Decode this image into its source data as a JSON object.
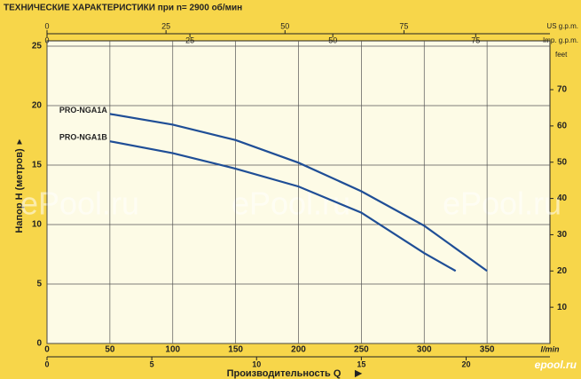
{
  "chart_data": {
    "type": "line",
    "title": "ТЕХНИЧЕСКИЕ ХАРАКТЕРИСТИКИ при n= 2900 об/мин",
    "y_label": "Напор H (метров)",
    "x_label": "Производительность Q",
    "x_unit": "l/min",
    "xlim": [
      0,
      400
    ],
    "xticks": [
      0,
      50,
      100,
      150,
      200,
      250,
      300,
      350
    ],
    "ylim": [
      0,
      25
    ],
    "yticks": [
      0,
      5,
      10,
      15,
      20,
      25
    ],
    "y2_unit": "feet",
    "y2lim": [
      0,
      82
    ],
    "y2ticks": [
      10,
      20,
      30,
      40,
      50,
      60,
      70
    ],
    "top_axes": [
      {
        "label": "US g.p.m.",
        "lim": [
          0,
          105.67
        ],
        "ticks": [
          0,
          25,
          50,
          75
        ]
      },
      {
        "label": "Imp. g.p.m.",
        "lim": [
          0,
          87.99
        ],
        "ticks": [
          0,
          25,
          50,
          75
        ]
      }
    ],
    "bottom_axis": {
      "lim": [
        0,
        24
      ],
      "ticks": [
        0,
        5,
        10,
        15,
        20
      ]
    },
    "grid": true,
    "series": [
      {
        "name": "PRO-NGA1A",
        "color": "#1f4e96",
        "x": [
          50,
          100,
          150,
          200,
          250,
          300,
          350
        ],
        "values": [
          19.3,
          18.4,
          17.1,
          15.2,
          12.8,
          9.9,
          6.1
        ]
      },
      {
        "name": "PRO-NGA1B",
        "color": "#1f4e96",
        "x": [
          50,
          100,
          150,
          200,
          250,
          300,
          325
        ],
        "values": [
          17.0,
          16.0,
          14.7,
          13.2,
          11.0,
          7.6,
          6.1
        ]
      }
    ],
    "watermarks": [
      "ePool.ru",
      "ePool.ru",
      "ePool.ru"
    ],
    "logo": "epool.ru"
  }
}
